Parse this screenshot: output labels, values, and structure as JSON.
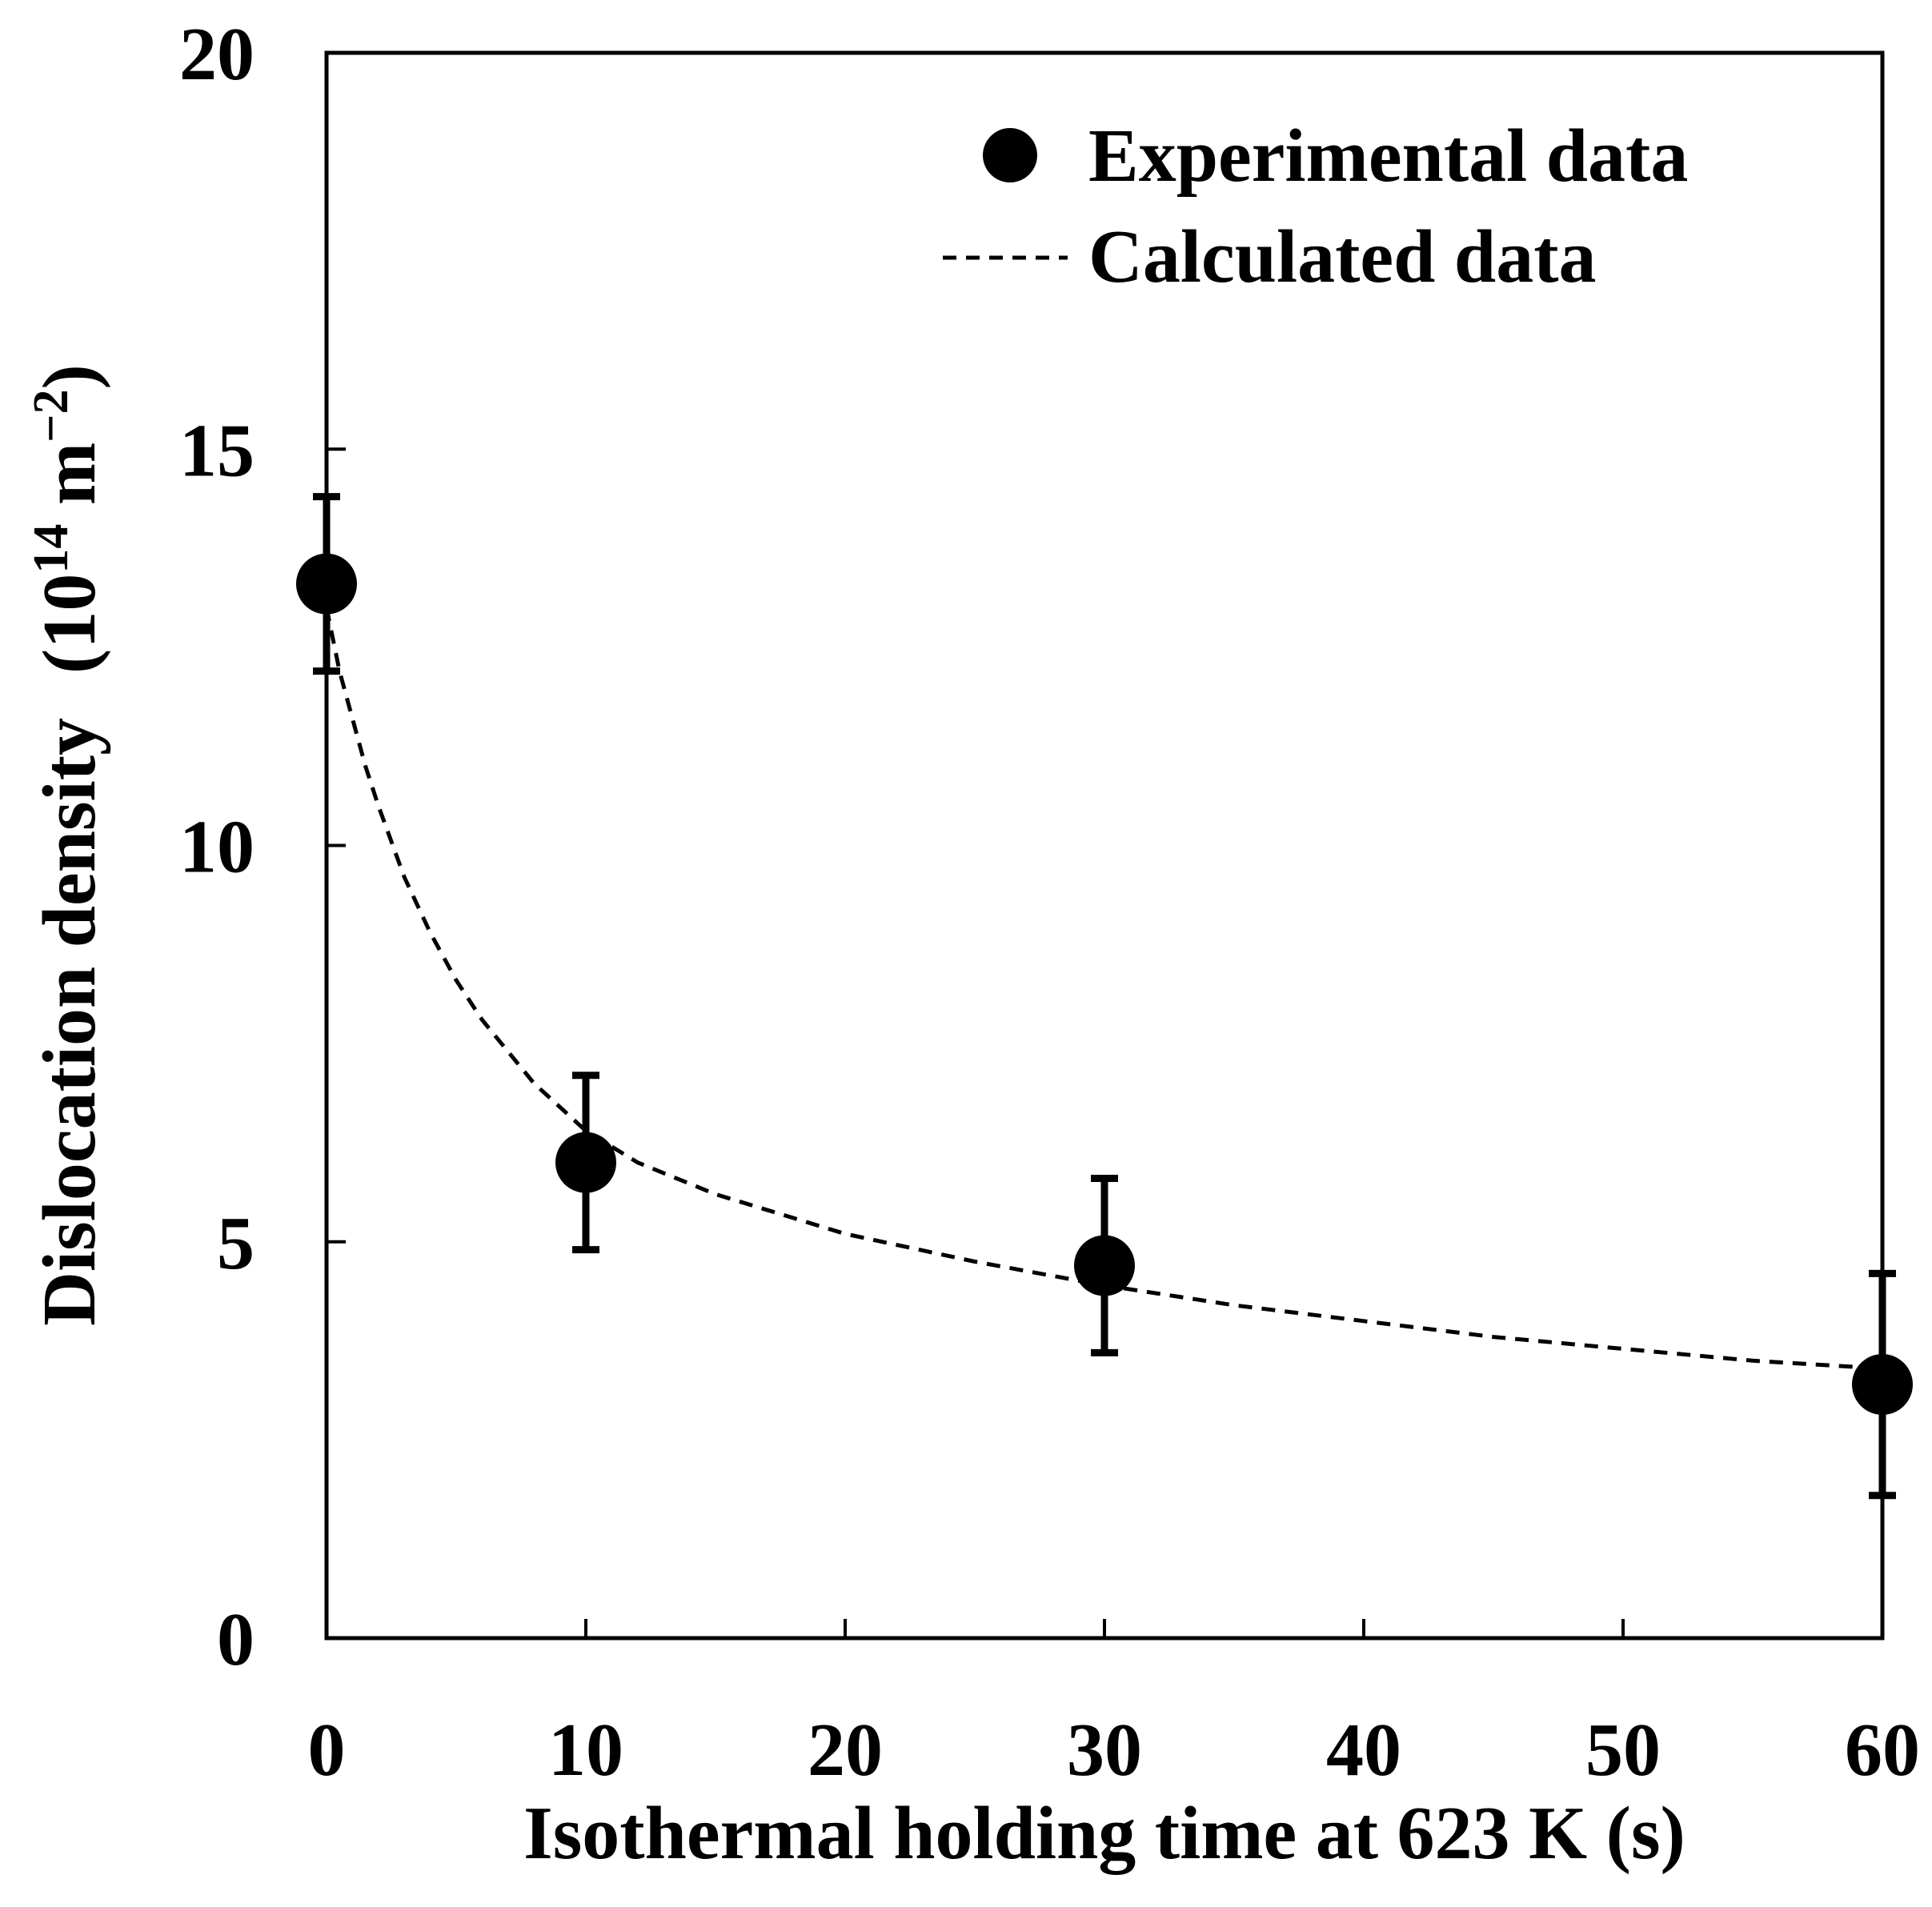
{
  "chart_data": {
    "type": "scatter",
    "title": "",
    "xlabel": "Isothermal holding time at 623 K (s)",
    "ylabel": {
      "main": "Dislocation density",
      "unit_open": "(10",
      "unit_exp": "14",
      "unit_mid": " m",
      "unit_exp2": "−2",
      "unit_close": ")"
    },
    "xlim": [
      0,
      60
    ],
    "ylim": [
      0,
      20
    ],
    "xticks": [
      0,
      10,
      20,
      30,
      40,
      50,
      60
    ],
    "yticks": [
      0,
      5,
      10,
      15,
      20
    ],
    "grid": false,
    "legend_position": "top-right",
    "series": [
      {
        "name": "Experimental data",
        "kind": "points",
        "marker": "filled-circle",
        "x": [
          0,
          10,
          30,
          60
        ],
        "y": [
          13.3,
          6.0,
          4.7,
          3.2
        ],
        "err_low": [
          12.2,
          4.9,
          3.6,
          1.8
        ],
        "err_high": [
          14.4,
          7.1,
          5.8,
          4.6
        ]
      },
      {
        "name": "Calculated data",
        "kind": "line",
        "style": "dashed",
        "x": [
          0,
          0.5,
          1,
          1.5,
          2,
          3,
          4,
          5,
          6,
          8,
          10,
          12,
          15,
          20,
          25,
          30,
          35,
          40,
          45,
          50,
          55,
          60
        ],
        "y": [
          13.0,
          12.2,
          11.6,
          11.0,
          10.5,
          9.6,
          8.9,
          8.3,
          7.8,
          7.0,
          6.4,
          6.0,
          5.6,
          5.1,
          4.75,
          4.45,
          4.2,
          4.0,
          3.8,
          3.65,
          3.5,
          3.4
        ]
      }
    ]
  },
  "colors": {
    "ink": "#000000",
    "background": "#ffffff"
  }
}
